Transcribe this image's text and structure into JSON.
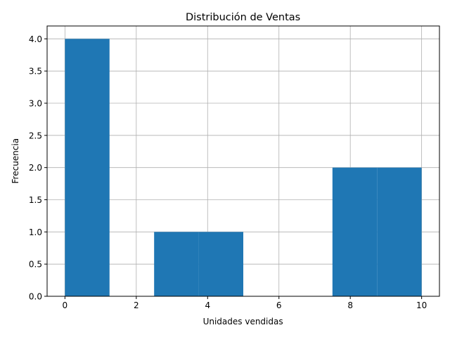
{
  "chart_data": {
    "type": "bar",
    "subtype": "histogram",
    "title": "Distribución de Ventas",
    "xlabel": "Unidades vendidas",
    "ylabel": "Frecuencia",
    "xlim": [
      -0.5,
      10.5
    ],
    "ylim": [
      0,
      4.2
    ],
    "xticks": [
      0,
      2,
      4,
      6,
      8,
      10
    ],
    "yticks": [
      0.0,
      0.5,
      1.0,
      1.5,
      2.0,
      2.5,
      3.0,
      3.5,
      4.0
    ],
    "x_tick_labels": [
      "0",
      "2",
      "4",
      "6",
      "8",
      "10"
    ],
    "y_tick_labels": [
      "0.0",
      "0.5",
      "1.0",
      "1.5",
      "2.0",
      "2.5",
      "3.0",
      "3.5",
      "4.0"
    ],
    "grid": true,
    "bar_color": "#1f77b4",
    "bins": [
      {
        "x0": 0.0,
        "x1": 1.25,
        "count": 4
      },
      {
        "x0": 1.25,
        "x1": 2.5,
        "count": 0
      },
      {
        "x0": 2.5,
        "x1": 3.75,
        "count": 1
      },
      {
        "x0": 3.75,
        "x1": 5.0,
        "count": 1
      },
      {
        "x0": 5.0,
        "x1": 6.25,
        "count": 0
      },
      {
        "x0": 6.25,
        "x1": 7.5,
        "count": 0
      },
      {
        "x0": 7.5,
        "x1": 8.75,
        "count": 2
      },
      {
        "x0": 8.75,
        "x1": 10.0,
        "count": 2
      }
    ]
  }
}
